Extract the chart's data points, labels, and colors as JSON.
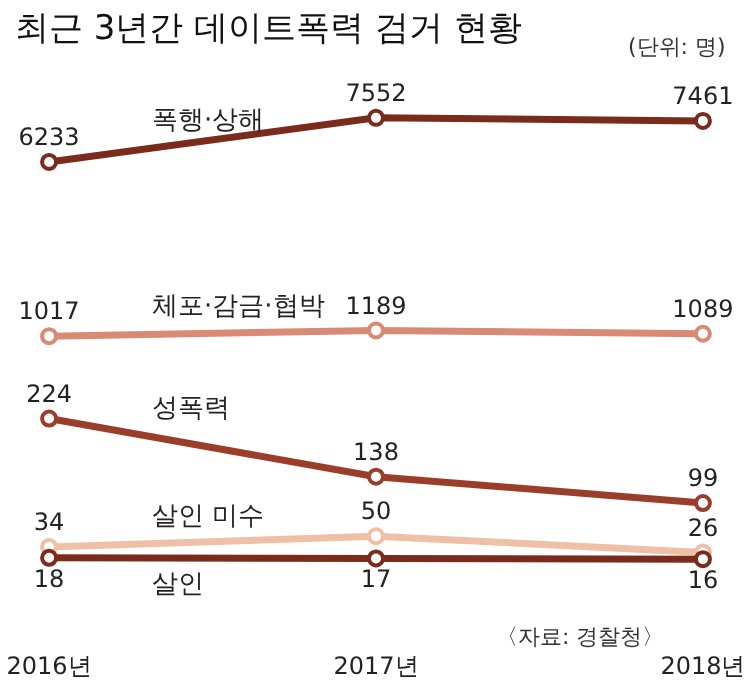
{
  "chart_data": [
    {
      "type": "line",
      "title": "최근 3년간 데이트폭력 검거 현황",
      "subtitle": "(단위: 명)",
      "categories": [
        null,
        null,
        null
      ],
      "series": [
        {
          "name": "폭행·상해",
          "color": "#7b2b1c",
          "values": [
            6233,
            7552,
            7461
          ]
        },
        {
          "name": "체포·감금·협박",
          "color": "#d98a74",
          "values": [
            1017,
            1189,
            1089
          ]
        }
      ],
      "data_labels": true,
      "marker": "circle",
      "legend": false,
      "grid": false,
      "tick_labels": false
    },
    {
      "type": "line",
      "categories": [
        "2016년",
        "2017년",
        "2018년"
      ],
      "series": [
        {
          "name": "성폭력",
          "color": "#9a3e2b",
          "values": [
            224,
            138,
            99
          ]
        },
        {
          "name": "살인 미수",
          "color": "#efbfa6",
          "values": [
            34,
            50,
            26
          ]
        },
        {
          "name": "살인",
          "color": "#7b2b1c",
          "values": [
            18,
            17,
            16
          ]
        }
      ],
      "data_labels": true,
      "marker": "circle",
      "legend": false,
      "grid": false,
      "tick_labels": "x",
      "annotations": [
        "〈자료: 경찰청〉"
      ]
    }
  ]
}
